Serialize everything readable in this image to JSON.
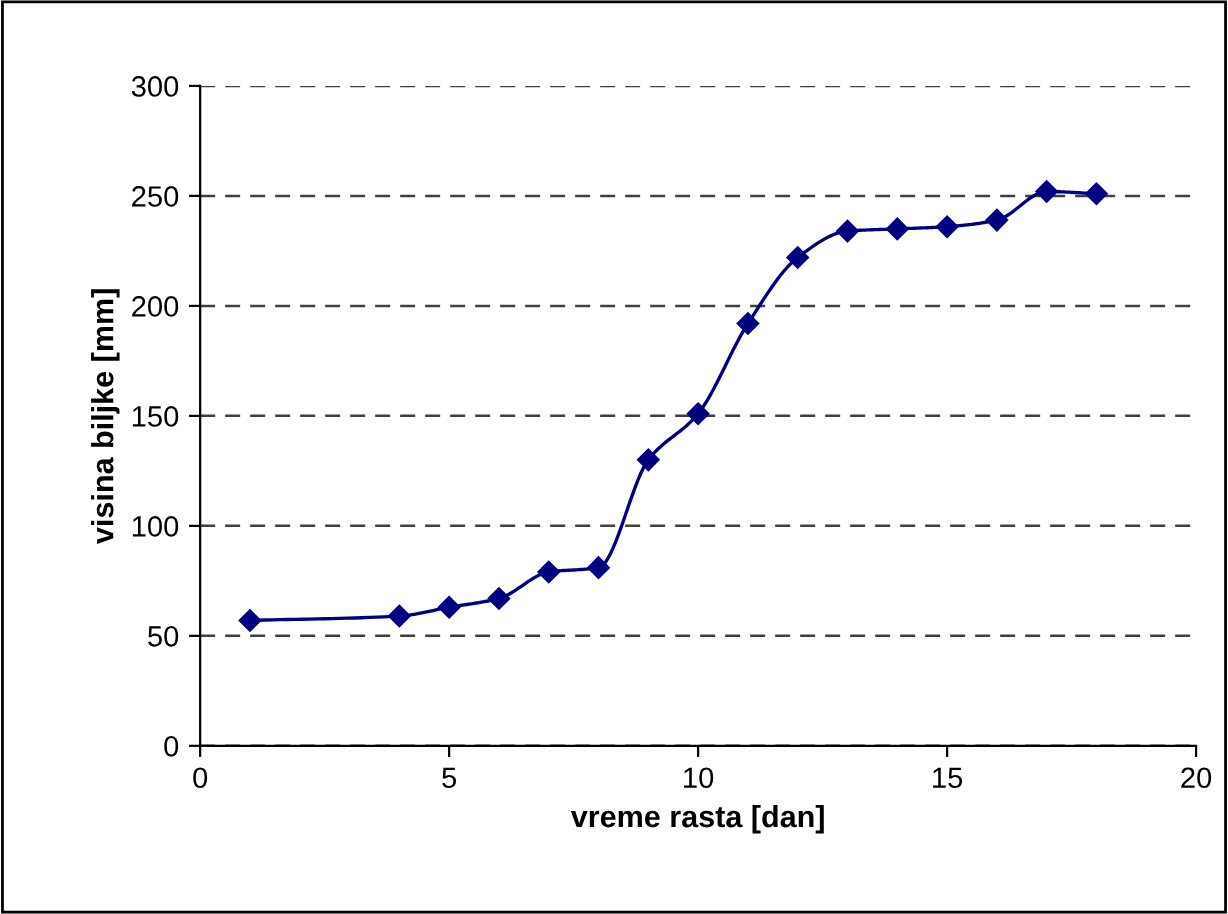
{
  "chart_data": {
    "type": "line",
    "xlabel": "vreme rasta [dan]",
    "ylabel": "visina biljke [mm]",
    "x": [
      1,
      4,
      5,
      6,
      7,
      8,
      9,
      10,
      11,
      12,
      13,
      14,
      15,
      16,
      17,
      18
    ],
    "series": [
      {
        "color": "#000080",
        "values": [
          57,
          59,
          63,
          67,
          79,
          81,
          130,
          151,
          192,
          222,
          234,
          235,
          236,
          239,
          252,
          251
        ]
      }
    ],
    "xlim": [
      0,
      20
    ],
    "xticks": [
      0,
      5,
      10,
      15,
      20
    ],
    "ylim": [
      0,
      300
    ],
    "yticks": [
      0,
      50,
      100,
      150,
      200,
      250,
      300
    ],
    "grid": "y",
    "marker": "diamond",
    "line_style": "solid"
  }
}
